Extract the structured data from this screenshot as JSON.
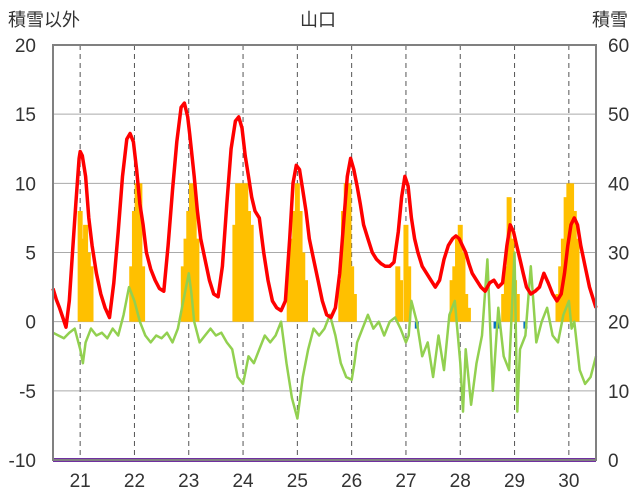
{
  "chart_data": {
    "type": "line",
    "title": "山口",
    "left_axis_label": "積雪以外",
    "right_axis_label": "積雪",
    "ylim": [
      -10,
      20
    ],
    "y2lim": [
      0,
      60
    ],
    "x_ticks": [
      "21",
      "22",
      "23",
      "24",
      "25",
      "26",
      "27",
      "28",
      "29",
      "30"
    ],
    "y_ticks": [
      "20",
      "15",
      "10",
      "5",
      "0",
      "-5",
      "-10"
    ],
    "y2_ticks": [
      "60",
      "50",
      "40",
      "30",
      "20",
      "10",
      "0"
    ],
    "x_range_days": [
      20.5,
      30.5
    ],
    "grid": true,
    "colors": {
      "temperature": "#ff0000",
      "humidity_like": "#92d050",
      "sunshine_bars": "#ffc000",
      "precip_bars": "#0070c0",
      "snow_depth": "#7030a0",
      "plot_border": "#808080",
      "grid": "#555555"
    },
    "series": [
      {
        "key": "temperature",
        "x": [
          20.5,
          20.56,
          20.62,
          20.68,
          20.74,
          20.8,
          20.86,
          20.92,
          20.98,
          21.0,
          21.04,
          21.1,
          21.16,
          21.22,
          21.3,
          21.38,
          21.46,
          21.54,
          21.62,
          21.7,
          21.78,
          21.86,
          21.92,
          21.98,
          22.04,
          22.1,
          22.16,
          22.22,
          22.3,
          22.38,
          22.46,
          22.54,
          22.62,
          22.7,
          22.78,
          22.86,
          22.92,
          22.98,
          23.02,
          23.06,
          23.1,
          23.16,
          23.22,
          23.3,
          23.38,
          23.46,
          23.54,
          23.62,
          23.7,
          23.78,
          23.86,
          23.92,
          23.98,
          24.04,
          24.1,
          24.16,
          24.22,
          24.3,
          24.38,
          24.46,
          24.54,
          24.62,
          24.7,
          24.78,
          24.86,
          24.92,
          24.98,
          25.04,
          25.1,
          25.16,
          25.22,
          25.3,
          25.38,
          25.46,
          25.54,
          25.62,
          25.7,
          25.78,
          25.86,
          25.92,
          25.98,
          26.04,
          26.1,
          26.16,
          26.22,
          26.3,
          26.38,
          26.46,
          26.54,
          26.62,
          26.7,
          26.78,
          26.86,
          26.92,
          26.98,
          27.04,
          27.1,
          27.16,
          27.22,
          27.3,
          27.38,
          27.46,
          27.54,
          27.62,
          27.7,
          27.78,
          27.86,
          27.92,
          27.98,
          28.04,
          28.1,
          28.16,
          28.22,
          28.3,
          28.38,
          28.46,
          28.54,
          28.62,
          28.7,
          28.78,
          28.86,
          28.92,
          28.98,
          29.04,
          29.1,
          29.16,
          29.22,
          29.3,
          29.38,
          29.46,
          29.54,
          29.62,
          29.7,
          29.78,
          29.86,
          29.92,
          29.98,
          30.04,
          30.1,
          30.16,
          30.22,
          30.3,
          30.38,
          30.46,
          30.5
        ],
        "values": [
          2.4,
          1.6,
          1.0,
          0.3,
          -0.4,
          1.5,
          5.0,
          8.5,
          11.8,
          12.3,
          12.0,
          10.5,
          7.5,
          5.5,
          3.5,
          2.0,
          1.0,
          0.3,
          2.8,
          6.5,
          10.5,
          13.2,
          13.6,
          13.0,
          11.0,
          8.5,
          7.0,
          5.0,
          3.8,
          3.0,
          2.4,
          2.2,
          5.5,
          9.5,
          13.0,
          15.5,
          15.8,
          14.8,
          13.5,
          12.0,
          10.5,
          8.0,
          6.0,
          4.5,
          3.0,
          2.0,
          1.8,
          4.0,
          8.5,
          12.5,
          14.5,
          14.8,
          14.0,
          12.0,
          10.5,
          9.0,
          8.0,
          7.5,
          5.0,
          3.0,
          1.5,
          1.0,
          0.8,
          1.5,
          6.0,
          10.0,
          11.3,
          11.0,
          9.5,
          8.0,
          6.0,
          4.5,
          3.0,
          1.5,
          0.5,
          0.3,
          1.0,
          3.5,
          7.5,
          10.5,
          11.8,
          11.0,
          9.8,
          8.5,
          7.0,
          6.0,
          5.0,
          4.5,
          4.2,
          4.0,
          4.0,
          4.3,
          6.5,
          9.0,
          10.5,
          9.8,
          7.5,
          6.0,
          5.0,
          4.0,
          3.5,
          3.0,
          2.5,
          3.0,
          4.5,
          5.5,
          6.0,
          6.2,
          6.0,
          5.5,
          5.0,
          4.2,
          3.5,
          3.0,
          2.5,
          2.2,
          2.8,
          3.0,
          2.5,
          2.8,
          5.5,
          7.0,
          6.5,
          5.5,
          4.5,
          3.5,
          2.5,
          2.0,
          2.2,
          2.5,
          3.5,
          2.8,
          2.0,
          1.5,
          2.0,
          3.5,
          5.5,
          7.0,
          7.5,
          7.0,
          5.5,
          4.0,
          2.5,
          1.5,
          1.0
        ]
      },
      {
        "key": "humidity_like",
        "x": [
          20.5,
          20.6,
          20.7,
          20.8,
          20.9,
          21.0,
          21.05,
          21.1,
          21.2,
          21.3,
          21.4,
          21.5,
          21.6,
          21.7,
          21.8,
          21.9,
          22.0,
          22.1,
          22.2,
          22.3,
          22.4,
          22.5,
          22.6,
          22.7,
          22.8,
          22.9,
          23.0,
          23.05,
          23.1,
          23.2,
          23.3,
          23.4,
          23.5,
          23.6,
          23.7,
          23.8,
          23.9,
          24.0,
          24.05,
          24.1,
          24.2,
          24.3,
          24.4,
          24.5,
          24.6,
          24.7,
          24.8,
          24.9,
          25.0,
          25.05,
          25.1,
          25.2,
          25.3,
          25.4,
          25.5,
          25.6,
          25.7,
          25.8,
          25.9,
          26.0,
          26.05,
          26.1,
          26.2,
          26.3,
          26.4,
          26.5,
          26.6,
          26.7,
          26.8,
          26.9,
          27.0,
          27.05,
          27.1,
          27.2,
          27.3,
          27.4,
          27.5,
          27.6,
          27.7,
          27.8,
          27.9,
          28.0,
          28.05,
          28.1,
          28.2,
          28.3,
          28.4,
          28.5,
          28.6,
          28.7,
          28.8,
          28.9,
          29.0,
          29.05,
          29.1,
          29.2,
          29.3,
          29.4,
          29.5,
          29.6,
          29.7,
          29.8,
          29.9,
          30.0,
          30.05,
          30.1,
          30.2,
          30.3,
          30.4,
          30.5
        ],
        "values": [
          -0.8,
          -1.0,
          -1.2,
          -0.8,
          -0.5,
          -2.0,
          -3.0,
          -1.5,
          -0.5,
          -1.0,
          -0.8,
          -1.2,
          -0.5,
          -1.0,
          0.5,
          2.5,
          1.5,
          0.0,
          -1.0,
          -1.5,
          -1.0,
          -1.2,
          -0.8,
          -1.5,
          -0.5,
          1.5,
          3.5,
          2.0,
          0.0,
          -1.5,
          -1.0,
          -0.5,
          -1.0,
          -0.8,
          -1.5,
          -2.0,
          -4.0,
          -4.5,
          -3.5,
          -2.5,
          -3.0,
          -2.0,
          -1.0,
          -1.5,
          -1.0,
          0.0,
          -3.0,
          -5.5,
          -7.0,
          -5.5,
          -4.0,
          -2.0,
          -0.5,
          -1.0,
          -0.5,
          0.5,
          -1.0,
          -3.0,
          -4.0,
          -4.2,
          -3.0,
          -1.5,
          -0.5,
          0.5,
          -0.5,
          0.0,
          -1.0,
          0.0,
          0.3,
          -0.5,
          -1.5,
          -1.0,
          1.5,
          0.0,
          -2.5,
          -1.5,
          -4.0,
          -1.0,
          -3.5,
          0.5,
          1.5,
          -3.0,
          -6.5,
          -2.0,
          -6.0,
          -3.0,
          -1.0,
          4.5,
          -5.0,
          1.0,
          -2.5,
          -3.5,
          5.0,
          -6.5,
          -2.0,
          -1.0,
          4.0,
          -1.5,
          0.0,
          1.0,
          -1.0,
          -1.5,
          0.5,
          1.5,
          -0.5,
          0.0,
          -3.5,
          -4.5,
          -4.0,
          -2.5
        ]
      },
      {
        "key": "sunshine_bars",
        "x": [
          21.0,
          21.05,
          21.1,
          21.15,
          21.2,
          21.95,
          22.0,
          22.05,
          22.1,
          22.15,
          22.9,
          22.95,
          23.0,
          23.05,
          23.1,
          23.15,
          23.85,
          23.9,
          23.95,
          24.0,
          24.05,
          24.1,
          24.15,
          24.85,
          24.9,
          24.95,
          25.0,
          25.05,
          25.1,
          25.15,
          25.8,
          25.85,
          25.9,
          25.95,
          26.0,
          26.05,
          26.85,
          26.9,
          27.0,
          27.05,
          27.85,
          27.9,
          27.95,
          28.0,
          28.05,
          28.1,
          28.15,
          28.8,
          28.85,
          28.9,
          28.95,
          29.0,
          29.05,
          29.8,
          29.85,
          29.9,
          29.95,
          30.0,
          30.05,
          30.1,
          30.15
        ],
        "values": [
          0.8,
          0.6,
          0.7,
          0.5,
          0.4,
          0.4,
          0.8,
          1.0,
          1.0,
          0.4,
          0.4,
          0.6,
          0.8,
          1.0,
          1.0,
          0.6,
          0.7,
          1.0,
          1.0,
          1.0,
          1.0,
          0.8,
          0.7,
          0.4,
          0.6,
          0.8,
          1.0,
          0.8,
          0.5,
          0.3,
          0.3,
          0.8,
          1.0,
          1.0,
          0.4,
          0.2,
          0.4,
          0.3,
          0.7,
          0.4,
          0.3,
          0.4,
          0.6,
          0.7,
          0.5,
          0.2,
          0.1,
          0.2,
          0.4,
          0.9,
          0.6,
          0.3,
          0.2,
          0.2,
          0.4,
          0.6,
          0.9,
          1.0,
          1.0,
          0.8,
          0.6
        ]
      },
      {
        "key": "precip_bars",
        "x": [
          27.2,
          28.65,
          28.7,
          29.2
        ],
        "values": [
          0.5,
          0.5,
          0.5,
          0.5
        ]
      },
      {
        "key": "snow_depth",
        "x": [
          20.5,
          30.5
        ],
        "values": [
          0,
          0
        ]
      }
    ]
  }
}
